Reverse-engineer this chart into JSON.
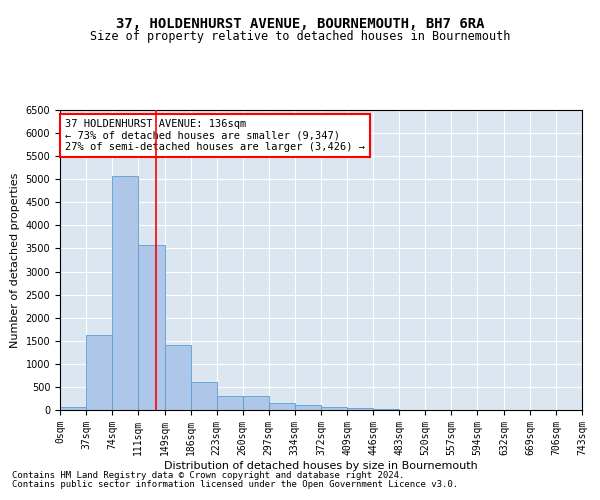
{
  "title": "37, HOLDENHURST AVENUE, BOURNEMOUTH, BH7 6RA",
  "subtitle": "Size of property relative to detached houses in Bournemouth",
  "xlabel": "Distribution of detached houses by size in Bournemouth",
  "ylabel": "Number of detached properties",
  "bar_color": "#aec6e8",
  "bar_edge_color": "#5a9fd4",
  "background_color": "#dce6f0",
  "grid_color": "#ffffff",
  "annotation_text": "37 HOLDENHURST AVENUE: 136sqm\n← 73% of detached houses are smaller (9,347)\n27% of semi-detached houses are larger (3,426) →",
  "vline_x": 136,
  "vline_color": "red",
  "bin_edges": [
    0,
    37,
    74,
    111,
    149,
    186,
    223,
    260,
    297,
    334,
    372,
    409,
    446,
    483,
    520,
    557,
    594,
    632,
    669,
    706,
    743
  ],
  "bar_heights": [
    75,
    1625,
    5075,
    3575,
    1400,
    600,
    300,
    300,
    150,
    100,
    75,
    50,
    30,
    0,
    0,
    0,
    0,
    0,
    0,
    0
  ],
  "ylim": [
    0,
    6500
  ],
  "yticks": [
    0,
    500,
    1000,
    1500,
    2000,
    2500,
    3000,
    3500,
    4000,
    4500,
    5000,
    5500,
    6000,
    6500
  ],
  "footer1": "Contains HM Land Registry data © Crown copyright and database right 2024.",
  "footer2": "Contains public sector information licensed under the Open Government Licence v3.0.",
  "title_fontsize": 10,
  "subtitle_fontsize": 8.5,
  "xlabel_fontsize": 8,
  "ylabel_fontsize": 8,
  "tick_fontsize": 7,
  "footer_fontsize": 6.5,
  "annotation_fontsize": 7.5
}
